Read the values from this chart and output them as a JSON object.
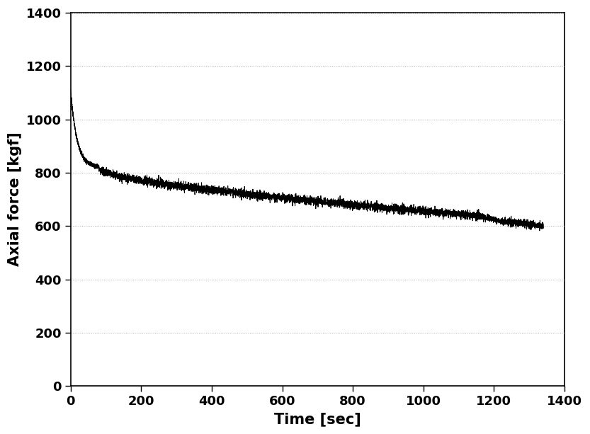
{
  "title": "",
  "xlabel": "Time [sec]",
  "ylabel": "Axial force [kgf]",
  "xlim": [
    0,
    1400
  ],
  "ylim": [
    0,
    1400
  ],
  "xticks": [
    0,
    200,
    400,
    600,
    800,
    1000,
    1200,
    1400
  ],
  "yticks": [
    0,
    200,
    400,
    600,
    800,
    1000,
    1200,
    1400
  ],
  "line_color": "#000000",
  "line_width": 0.7,
  "grid_color": "#aaaaaa",
  "grid_linestyle": ":",
  "grid_linewidth": 0.7,
  "background_color": "#ffffff",
  "xlabel_fontsize": 15,
  "ylabel_fontsize": 15,
  "tick_fontsize": 13,
  "font_weight": "bold",
  "curve_params": {
    "x_end": 1340,
    "y_start": 1105,
    "y_fast_decay_end": 820,
    "x_fast_decay_end": 80,
    "y_slow_end": 600,
    "noise_amplitude": 8,
    "step_x": 1160,
    "step_drop": 18
  }
}
